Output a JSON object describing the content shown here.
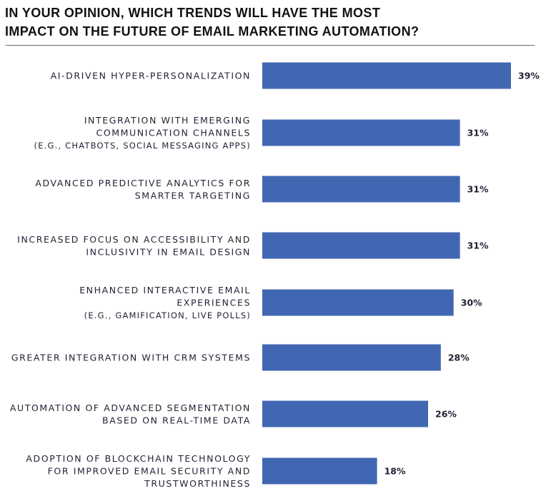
{
  "chart_data": {
    "type": "bar",
    "orientation": "horizontal",
    "title_lines": [
      "IN YOUR OPINION, WHICH TRENDS WILL HAVE THE MOST",
      "IMPACT ON THE FUTURE OF EMAIL MARKETING AUTOMATION?"
    ],
    "categories": [
      {
        "lines": [
          "AI-DRIVEN HYPER-PERSONALIZATION"
        ],
        "sub": ""
      },
      {
        "lines": [
          "INTEGRATION WITH EMERGING",
          "COMMUNICATION CHANNELS"
        ],
        "sub": "(E.G., CHATBOTS, SOCIAL MESSAGING APPS)"
      },
      {
        "lines": [
          "ADVANCED PREDICTIVE ANALYTICS FOR",
          "SMARTER TARGETING"
        ],
        "sub": ""
      },
      {
        "lines": [
          "INCREASED FOCUS ON ACCESSIBILITY AND",
          "INCLUSIVITY IN EMAIL DESIGN"
        ],
        "sub": ""
      },
      {
        "lines": [
          "ENHANCED INTERACTIVE EMAIL",
          "EXPERIENCES"
        ],
        "sub": "(E.G., GAMIFICATION, LIVE POLLS)"
      },
      {
        "lines": [
          "GREATER INTEGRATION WITH CRM SYSTEMS"
        ],
        "sub": ""
      },
      {
        "lines": [
          "AUTOMATION OF ADVANCED SEGMENTATION",
          "BASED ON REAL-TIME DATA"
        ],
        "sub": ""
      },
      {
        "lines": [
          "ADOPTION OF BLOCKCHAIN TECHNOLOGY",
          "FOR IMPROVED EMAIL SECURITY AND",
          "TRUSTWORTHINESS"
        ],
        "sub": ""
      }
    ],
    "values": [
      39,
      31,
      31,
      31,
      30,
      28,
      26,
      18
    ],
    "value_labels": [
      "39%",
      "31%",
      "31%",
      "31%",
      "30%",
      "28%",
      "26%",
      "18%"
    ],
    "unit": "%",
    "xlim": [
      0,
      39
    ],
    "grid": false,
    "legend": "none",
    "bar_color": "#4267b2"
  }
}
